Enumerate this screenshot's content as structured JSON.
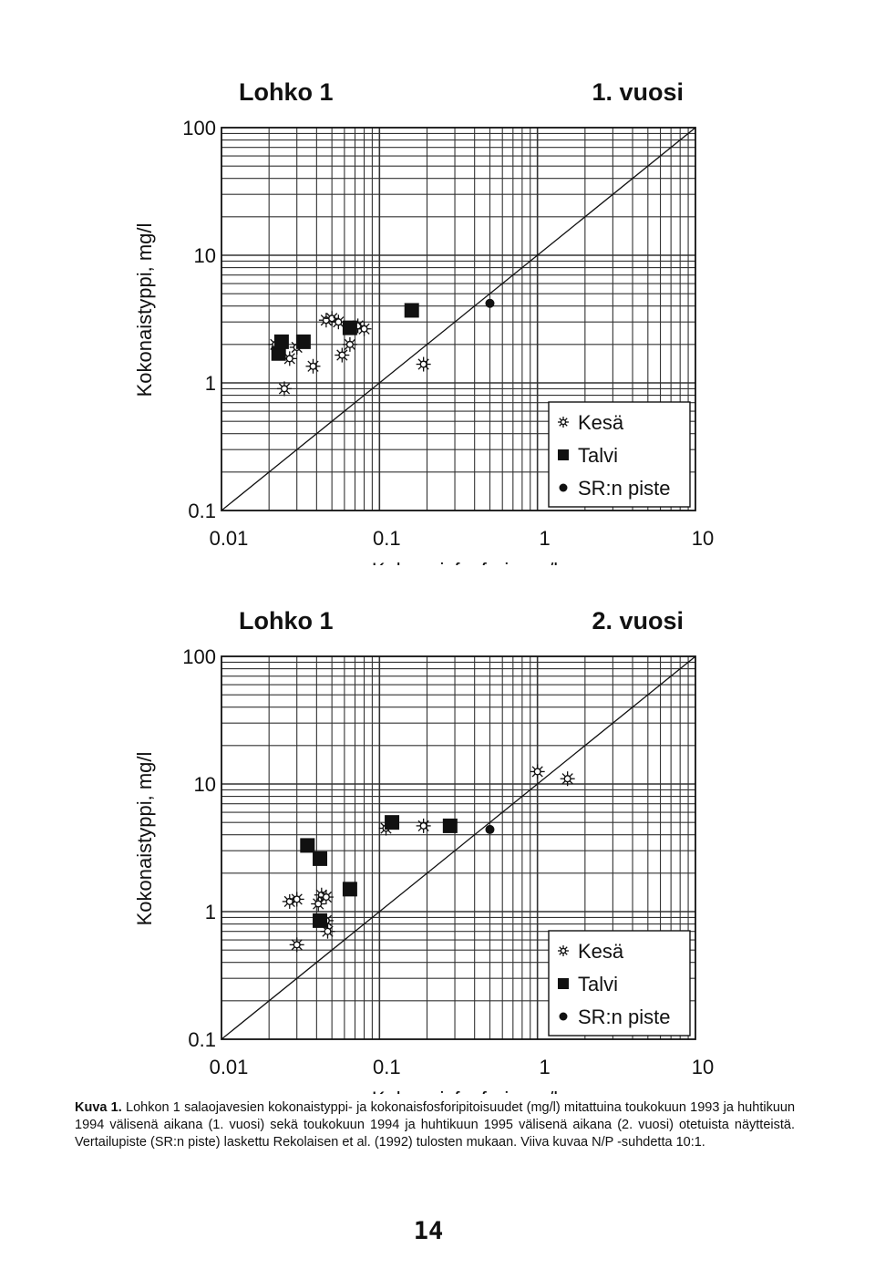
{
  "chart_data": [
    {
      "type": "scatter",
      "title": "Lohko 1",
      "subtitle": "1. vuosi",
      "xlabel": "Kokonaisfosfori, mg/l",
      "ylabel": "Kokonaistyppi, mg/l",
      "xscale": "log",
      "yscale": "log",
      "xlim": [
        0.01,
        10
      ],
      "ylim": [
        0.1,
        100
      ],
      "xticks": [
        "0.01",
        "0.1",
        "1",
        "10"
      ],
      "yticks": [
        "0.1",
        "1",
        "10",
        "100"
      ],
      "grid": true,
      "legend_position": "bottom-right",
      "reference_line": {
        "ratio": 10,
        "description": "N/P 10:1"
      },
      "series": [
        {
          "name": "Kesä",
          "marker": "sun",
          "points": [
            [
              0.022,
              2.0
            ],
            [
              0.025,
              0.9
            ],
            [
              0.027,
              1.55
            ],
            [
              0.03,
              1.9
            ],
            [
              0.038,
              1.35
            ],
            [
              0.046,
              3.1
            ],
            [
              0.05,
              3.2
            ],
            [
              0.055,
              3.0
            ],
            [
              0.058,
              1.65
            ],
            [
              0.065,
              2.0
            ],
            [
              0.073,
              2.8
            ],
            [
              0.08,
              2.65
            ],
            [
              0.19,
              1.4
            ]
          ]
        },
        {
          "name": "Talvi",
          "marker": "square",
          "points": [
            [
              0.023,
              1.7
            ],
            [
              0.024,
              2.1
            ],
            [
              0.033,
              2.1
            ],
            [
              0.065,
              2.7
            ],
            [
              0.16,
              3.7
            ]
          ]
        },
        {
          "name": "SR:n piste",
          "marker": "dot",
          "points": [
            [
              0.5,
              4.2
            ]
          ]
        }
      ]
    },
    {
      "type": "scatter",
      "title": "Lohko 1",
      "subtitle": "2. vuosi",
      "xlabel": "Kokonaisfosfori, mg/l",
      "ylabel": "Kokonaistyppi, mg/l",
      "xscale": "log",
      "yscale": "log",
      "xlim": [
        0.01,
        10
      ],
      "ylim": [
        0.1,
        100
      ],
      "xticks": [
        "0.01",
        "0.1",
        "1",
        "10"
      ],
      "yticks": [
        "0.1",
        "1",
        "10",
        "100"
      ],
      "grid": true,
      "legend_position": "bottom-right",
      "reference_line": {
        "ratio": 10,
        "description": "N/P 10:1"
      },
      "series": [
        {
          "name": "Kesä",
          "marker": "sun",
          "points": [
            [
              0.027,
              1.2
            ],
            [
              0.03,
              1.25
            ],
            [
              0.03,
              0.55
            ],
            [
              0.041,
              1.15
            ],
            [
              0.043,
              1.35
            ],
            [
              0.046,
              1.3
            ],
            [
              0.046,
              0.85
            ],
            [
              0.047,
              0.7
            ],
            [
              0.11,
              4.5
            ],
            [
              0.19,
              4.7
            ],
            [
              1.0,
              12.5
            ],
            [
              1.55,
              11.0
            ]
          ]
        },
        {
          "name": "Talvi",
          "marker": "square",
          "points": [
            [
              0.035,
              3.3
            ],
            [
              0.042,
              2.6
            ],
            [
              0.042,
              0.85
            ],
            [
              0.065,
              1.5
            ],
            [
              0.12,
              5.0
            ],
            [
              0.28,
              4.7
            ]
          ]
        },
        {
          "name": "SR:n piste",
          "marker": "dot",
          "points": [
            [
              0.5,
              4.4
            ]
          ]
        }
      ]
    }
  ],
  "caption": {
    "label": "Kuva 1.",
    "text": "Lohkon 1 salaojavesien kokonaistyppi- ja kokonaisfosforipitoisuudet (mg/l) mitattuina toukokuun 1993 ja huhtikuun 1994 välisenä aikana (1. vuosi) sekä toukokuun 1994 ja huhtikuun 1995 välisenä aikana (2. vuosi) otetuista näytteistä. Vertailupiste (SR:n piste) laskettu Rekolaisen et al. (1992) tulosten mukaan. Viiva kuvaa N/P -suhdetta 10:1."
  },
  "page_number": "14"
}
